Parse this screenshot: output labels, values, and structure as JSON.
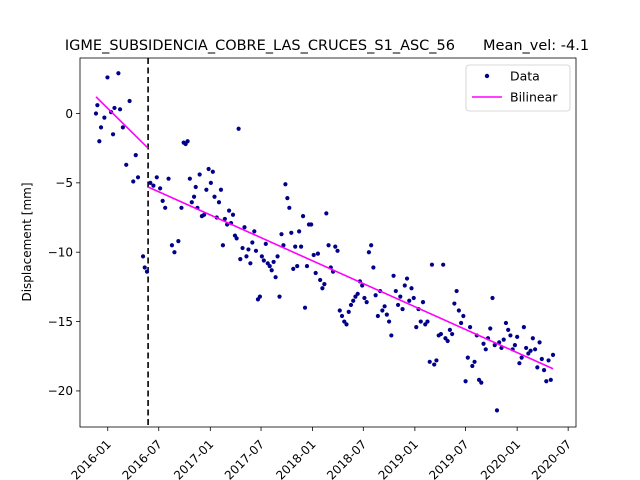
{
  "chart_data": {
    "type": "scatter",
    "title": "IGME_SUBSIDENCIA_COBRE_LAS_CRUCES_S1_ASC_56",
    "subtitle": "Mean_vel: -4.1",
    "xlabel": "",
    "ylabel": "Displacement [mm]",
    "x_tick_labels": [
      "2016-01",
      "2016-07",
      "2017-01",
      "2017-07",
      "2018-01",
      "2018-07",
      "2019-01",
      "2019-07",
      "2020-01",
      "2020-07"
    ],
    "y_tick_labels": [
      "−20",
      "−15",
      "−10",
      "−5",
      "0"
    ],
    "xlim": [
      "2015-09-24",
      "2020-07-29"
    ],
    "ylim": [
      -22.6,
      4.0
    ],
    "grid": false,
    "legend_position": "top-right",
    "colors": {
      "data": "#00008b",
      "fit": "#ff00ff",
      "breakpoint": "#000000"
    },
    "breakpoint_date": "2016-05-24",
    "series": [
      {
        "name": "Data",
        "kind": "points",
        "points": [
          [
            "2015-11-20",
            0.0
          ],
          [
            "2015-11-25",
            0.6
          ],
          [
            "2015-12-02",
            -2.0
          ],
          [
            "2015-12-08",
            -1.0
          ],
          [
            "2015-12-20",
            -0.3
          ],
          [
            "2015-12-31",
            2.6
          ],
          [
            "2016-01-13",
            0.1
          ],
          [
            "2016-01-20",
            -1.5
          ],
          [
            "2016-01-25",
            0.4
          ],
          [
            "2016-02-08",
            2.9
          ],
          [
            "2016-02-14",
            0.3
          ],
          [
            "2016-02-24",
            -1.0
          ],
          [
            "2016-03-07",
            -3.7
          ],
          [
            "2016-03-19",
            0.9
          ],
          [
            "2016-04-01",
            -4.9
          ],
          [
            "2016-04-10",
            -3.0
          ],
          [
            "2016-04-18",
            -4.6
          ],
          [
            "2016-05-06",
            -10.3
          ],
          [
            "2016-05-12",
            -11.1
          ],
          [
            "2016-05-20",
            -11.4
          ],
          [
            "2016-06-01",
            -5.0
          ],
          [
            "2016-06-12",
            -5.2
          ],
          [
            "2016-06-24",
            -4.6
          ],
          [
            "2016-07-06",
            -5.4
          ],
          [
            "2016-07-15",
            -6.3
          ],
          [
            "2016-07-24",
            -6.8
          ],
          [
            "2016-08-05",
            -4.7
          ],
          [
            "2016-08-17",
            -9.5
          ],
          [
            "2016-08-26",
            -10.0
          ],
          [
            "2016-09-09",
            -9.2
          ],
          [
            "2016-09-20",
            -6.8
          ],
          [
            "2016-09-28",
            -2.1
          ],
          [
            "2016-10-05",
            -2.2
          ],
          [
            "2016-10-12",
            -2.0
          ],
          [
            "2016-10-20",
            -4.7
          ],
          [
            "2016-10-27",
            -6.4
          ],
          [
            "2016-11-04",
            -6.0
          ],
          [
            "2016-11-10",
            -5.3
          ],
          [
            "2016-11-16",
            -6.8
          ],
          [
            "2016-11-24",
            -4.4
          ],
          [
            "2016-12-02",
            -7.4
          ],
          [
            "2016-12-10",
            -7.3
          ],
          [
            "2016-12-18",
            -5.5
          ],
          [
            "2016-12-26",
            -4.0
          ],
          [
            "2017-01-03",
            -5.0
          ],
          [
            "2017-01-10",
            -4.2
          ],
          [
            "2017-01-16",
            -6.0
          ],
          [
            "2017-01-24",
            -7.5
          ],
          [
            "2017-02-01",
            -6.4
          ],
          [
            "2017-02-08",
            -5.5
          ],
          [
            "2017-02-15",
            -9.5
          ],
          [
            "2017-02-22",
            -7.6
          ],
          [
            "2017-03-02",
            -8.0
          ],
          [
            "2017-03-09",
            -7.0
          ],
          [
            "2017-03-16",
            -7.9
          ],
          [
            "2017-03-23",
            -7.3
          ],
          [
            "2017-03-30",
            -8.8
          ],
          [
            "2017-04-05",
            -9.0
          ],
          [
            "2017-04-12",
            -1.1
          ],
          [
            "2017-04-18",
            -10.5
          ],
          [
            "2017-04-26",
            -9.7
          ],
          [
            "2017-05-03",
            -8.2
          ],
          [
            "2017-05-10",
            -10.3
          ],
          [
            "2017-05-17",
            -9.8
          ],
          [
            "2017-05-24",
            -10.8
          ],
          [
            "2017-05-31",
            -9.3
          ],
          [
            "2017-06-07",
            -8.5
          ],
          [
            "2017-06-13",
            -9.9
          ],
          [
            "2017-06-20",
            -13.4
          ],
          [
            "2017-06-27",
            -13.2
          ],
          [
            "2017-07-04",
            -10.3
          ],
          [
            "2017-07-11",
            -10.6
          ],
          [
            "2017-07-18",
            -9.4
          ],
          [
            "2017-07-25",
            -10.8
          ],
          [
            "2017-08-01",
            -11.0
          ],
          [
            "2017-08-08",
            -11.3
          ],
          [
            "2017-08-15",
            -10.7
          ],
          [
            "2017-08-22",
            -11.8
          ],
          [
            "2017-08-29",
            -10.3
          ],
          [
            "2017-09-05",
            -13.2
          ],
          [
            "2017-09-12",
            -8.7
          ],
          [
            "2017-09-19",
            -9.5
          ],
          [
            "2017-09-26",
            -5.1
          ],
          [
            "2017-10-03",
            -6.1
          ],
          [
            "2017-10-10",
            -6.8
          ],
          [
            "2017-10-17",
            -8.6
          ],
          [
            "2017-10-24",
            -11.2
          ],
          [
            "2017-10-31",
            -9.6
          ],
          [
            "2017-11-07",
            -11.0
          ],
          [
            "2017-11-14",
            -8.5
          ],
          [
            "2017-11-21",
            -9.6
          ],
          [
            "2017-11-28",
            -7.4
          ],
          [
            "2017-12-05",
            -14.0
          ],
          [
            "2017-12-12",
            -11.0
          ],
          [
            "2017-12-19",
            -8.0
          ],
          [
            "2017-12-27",
            -8.0
          ],
          [
            "2018-01-05",
            -10.2
          ],
          [
            "2018-01-12",
            -11.5
          ],
          [
            "2018-01-20",
            -10.1
          ],
          [
            "2018-01-28",
            -12.0
          ],
          [
            "2018-02-05",
            -12.6
          ],
          [
            "2018-02-12",
            -12.3
          ],
          [
            "2018-02-19",
            -7.2
          ],
          [
            "2018-02-27",
            -9.5
          ],
          [
            "2018-03-07",
            -11.1
          ],
          [
            "2018-03-15",
            -11.4
          ],
          [
            "2018-03-23",
            -9.6
          ],
          [
            "2018-03-31",
            -9.9
          ],
          [
            "2018-04-08",
            -14.2
          ],
          [
            "2018-04-16",
            -14.6
          ],
          [
            "2018-04-24",
            -15.0
          ],
          [
            "2018-05-02",
            -15.2
          ],
          [
            "2018-05-10",
            -14.3
          ],
          [
            "2018-05-18",
            -13.8
          ],
          [
            "2018-05-26",
            -13.5
          ],
          [
            "2018-06-03",
            -13.2
          ],
          [
            "2018-06-11",
            -13.0
          ],
          [
            "2018-06-19",
            -12.1
          ],
          [
            "2018-06-27",
            -12.4
          ],
          [
            "2018-07-05",
            -13.3
          ],
          [
            "2018-07-13",
            -13.6
          ],
          [
            "2018-07-21",
            -10.0
          ],
          [
            "2018-07-29",
            -9.5
          ],
          [
            "2018-08-06",
            -11.1
          ],
          [
            "2018-08-14",
            -13.1
          ],
          [
            "2018-08-22",
            -14.6
          ],
          [
            "2018-08-30",
            -12.8
          ],
          [
            "2018-09-07",
            -14.2
          ],
          [
            "2018-09-15",
            -13.9
          ],
          [
            "2018-09-23",
            -14.5
          ],
          [
            "2018-10-01",
            -15.0
          ],
          [
            "2018-10-09",
            -16.0
          ],
          [
            "2018-10-17",
            -11.7
          ],
          [
            "2018-10-25",
            -12.8
          ],
          [
            "2018-11-02",
            -13.8
          ],
          [
            "2018-11-10",
            -13.2
          ],
          [
            "2018-11-18",
            -14.1
          ],
          [
            "2018-11-26",
            -12.4
          ],
          [
            "2018-12-04",
            -11.9
          ],
          [
            "2018-12-12",
            -13.5
          ],
          [
            "2018-12-20",
            -12.6
          ],
          [
            "2018-12-28",
            -13.3
          ],
          [
            "2019-01-06",
            -15.4
          ],
          [
            "2019-01-14",
            -14.1
          ],
          [
            "2019-01-22",
            -15.0
          ],
          [
            "2019-01-30",
            -13.6
          ],
          [
            "2019-02-07",
            -15.2
          ],
          [
            "2019-02-15",
            -15.0
          ],
          [
            "2019-02-23",
            -17.9
          ],
          [
            "2019-03-03",
            -10.9
          ],
          [
            "2019-03-11",
            -18.1
          ],
          [
            "2019-03-19",
            -17.8
          ],
          [
            "2019-03-27",
            -16.0
          ],
          [
            "2019-04-04",
            -15.9
          ],
          [
            "2019-04-12",
            -10.9
          ],
          [
            "2019-04-20",
            -16.2
          ],
          [
            "2019-04-28",
            -16.4
          ],
          [
            "2019-05-06",
            -15.6
          ],
          [
            "2019-05-14",
            -15.9
          ],
          [
            "2019-05-22",
            -13.7
          ],
          [
            "2019-05-30",
            -12.8
          ],
          [
            "2019-06-07",
            -14.2
          ],
          [
            "2019-06-15",
            -15.1
          ],
          [
            "2019-06-23",
            -14.6
          ],
          [
            "2019-07-01",
            -19.3
          ],
          [
            "2019-07-09",
            -17.6
          ],
          [
            "2019-07-17",
            -15.4
          ],
          [
            "2019-07-25",
            -18.2
          ],
          [
            "2019-08-02",
            -17.9
          ],
          [
            "2019-08-10",
            -16.0
          ],
          [
            "2019-08-18",
            -19.2
          ],
          [
            "2019-08-26",
            -19.4
          ],
          [
            "2019-09-03",
            -16.6
          ],
          [
            "2019-09-11",
            -17.0
          ],
          [
            "2019-09-19",
            -16.2
          ],
          [
            "2019-09-27",
            -15.5
          ],
          [
            "2019-10-05",
            -13.3
          ],
          [
            "2019-10-13",
            -16.7
          ],
          [
            "2019-10-21",
            -21.4
          ],
          [
            "2019-10-29",
            -16.5
          ],
          [
            "2019-11-06",
            -16.9
          ],
          [
            "2019-11-14",
            -16.3
          ],
          [
            "2019-11-22",
            -15.1
          ],
          [
            "2019-11-30",
            -15.6
          ],
          [
            "2019-12-08",
            -16.0
          ],
          [
            "2019-12-16",
            -17.0
          ],
          [
            "2019-12-24",
            -16.7
          ],
          [
            "2020-01-01",
            -16.1
          ],
          [
            "2020-01-09",
            -18.0
          ],
          [
            "2020-01-17",
            -17.6
          ],
          [
            "2020-01-25",
            -15.4
          ],
          [
            "2020-02-02",
            -16.9
          ],
          [
            "2020-02-10",
            -17.3
          ],
          [
            "2020-02-18",
            -17.1
          ],
          [
            "2020-02-26",
            -16.2
          ],
          [
            "2020-03-05",
            -17.0
          ],
          [
            "2020-03-13",
            -18.3
          ],
          [
            "2020-03-21",
            -16.5
          ],
          [
            "2020-03-29",
            -17.7
          ],
          [
            "2020-04-06",
            -18.5
          ],
          [
            "2020-04-14",
            -19.3
          ],
          [
            "2020-04-22",
            -17.8
          ],
          [
            "2020-04-30",
            -19.2
          ],
          [
            "2020-05-08",
            -17.4
          ]
        ]
      },
      {
        "name": "Bilinear",
        "kind": "line",
        "segments": [
          [
            [
              "2015-11-20",
              1.2
            ],
            [
              "2016-05-24",
              -2.5
            ]
          ],
          [
            [
              "2016-05-24",
              -5.3
            ],
            [
              "2020-05-08",
              -18.4
            ]
          ]
        ]
      }
    ]
  }
}
